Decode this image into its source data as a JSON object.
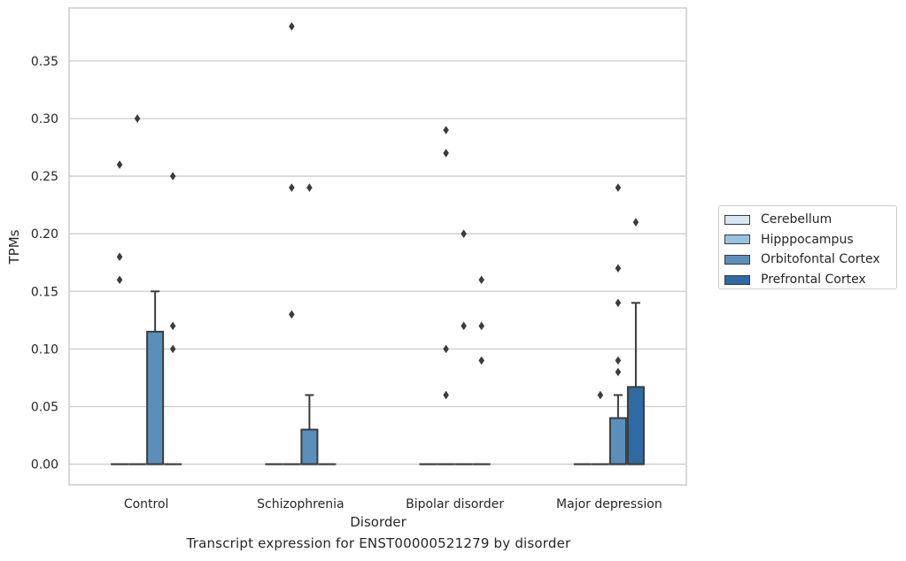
{
  "figure": {
    "caption": "Transcript expression for ENST00000521279 by disorder"
  },
  "chart_data": {
    "type": "box",
    "xlabel": "Disorder",
    "ylabel": "TPMs",
    "categories": [
      "Control",
      "Schizophrenia",
      "Bipolar disorder",
      "Major depression"
    ],
    "ylim": [
      -0.018,
      0.396
    ],
    "yticks": [
      "0.00",
      "0.05",
      "0.10",
      "0.15",
      "0.20",
      "0.25",
      "0.30",
      "0.35"
    ],
    "grid": "horizontal",
    "legend_position": "right",
    "series": [
      {
        "name": "Cerebellum",
        "color": "#d6e6f4",
        "boxes": [
          {
            "q1": 0,
            "median": 0,
            "q3": 0,
            "whisker_low": 0,
            "whisker_high": 0,
            "outliers": [
              0.16,
              0.18,
              0.26
            ]
          },
          {
            "q1": 0,
            "median": 0,
            "q3": 0,
            "whisker_low": 0,
            "whisker_high": 0,
            "outliers": []
          },
          {
            "q1": 0,
            "median": 0,
            "q3": 0,
            "whisker_low": 0,
            "whisker_high": 0,
            "outliers": []
          },
          {
            "q1": 0,
            "median": 0,
            "q3": 0,
            "whisker_low": 0,
            "whisker_high": 0,
            "outliers": []
          }
        ]
      },
      {
        "name": "Hipppocampus",
        "color": "#99c1e0",
        "boxes": [
          {
            "q1": 0,
            "median": 0,
            "q3": 0,
            "whisker_low": 0,
            "whisker_high": 0,
            "outliers": [
              0.3
            ]
          },
          {
            "q1": 0,
            "median": 0,
            "q3": 0,
            "whisker_low": 0,
            "whisker_high": 0,
            "outliers": [
              0.13,
              0.24,
              0.38
            ]
          },
          {
            "q1": 0,
            "median": 0,
            "q3": 0,
            "whisker_low": 0,
            "whisker_high": 0,
            "outliers": [
              0.06,
              0.1,
              0.27,
              0.29
            ]
          },
          {
            "q1": 0,
            "median": 0,
            "q3": 0,
            "whisker_low": 0,
            "whisker_high": 0,
            "outliers": [
              0.06
            ]
          }
        ]
      },
      {
        "name": "Orbitofontal Cortex",
        "color": "#5a8fbc",
        "boxes": [
          {
            "q1": 0,
            "median": 0,
            "q3": 0.115,
            "whisker_low": 0,
            "whisker_high": 0.15,
            "outliers": []
          },
          {
            "q1": 0,
            "median": 0,
            "q3": 0.03,
            "whisker_low": 0,
            "whisker_high": 0.06,
            "outliers": [
              0.24
            ]
          },
          {
            "q1": 0,
            "median": 0,
            "q3": 0,
            "whisker_low": 0,
            "whisker_high": 0,
            "outliers": [
              0.12,
              0.2
            ]
          },
          {
            "q1": 0,
            "median": 0,
            "q3": 0.04,
            "whisker_low": 0,
            "whisker_high": 0.06,
            "outliers": [
              0.08,
              0.09,
              0.14,
              0.17,
              0.24
            ]
          }
        ]
      },
      {
        "name": "Prefrontal Cortex",
        "color": "#2e6aa3",
        "boxes": [
          {
            "q1": 0,
            "median": 0,
            "q3": 0,
            "whisker_low": 0,
            "whisker_high": 0,
            "outliers": [
              0.1,
              0.12,
              0.25
            ]
          },
          {
            "q1": 0,
            "median": 0,
            "q3": 0,
            "whisker_low": 0,
            "whisker_high": 0,
            "outliers": []
          },
          {
            "q1": 0,
            "median": 0,
            "q3": 0,
            "whisker_low": 0,
            "whisker_high": 0,
            "outliers": [
              0.09,
              0.12,
              0.16
            ]
          },
          {
            "q1": 0,
            "median": 0,
            "q3": 0.067,
            "whisker_low": 0,
            "whisker_high": 0.14,
            "outliers": [
              0.21
            ]
          }
        ]
      }
    ]
  }
}
